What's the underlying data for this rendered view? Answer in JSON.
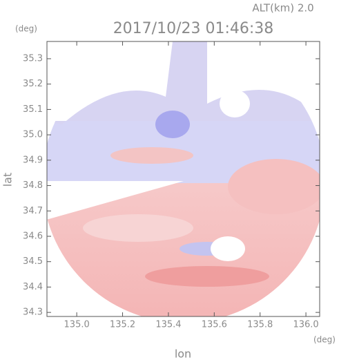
{
  "chart_data": {
    "type": "radar-image",
    "title": "2017/10/23 01:46:38",
    "subtitle": "ALT(km) 2.0",
    "x_label": "lon",
    "y_label": "lat",
    "x_unit": "(deg)",
    "y_unit": "(deg)",
    "xlim": [
      134.87,
      136.06
    ],
    "ylim": [
      34.284,
      35.368
    ],
    "xticks": [
      {
        "value": 135,
        "label": "135.0"
      },
      135.2,
      135.4,
      135.6,
      135.8,
      {
        "value": 136,
        "label": "136.0"
      }
    ],
    "yticks": [
      34.3,
      34.4,
      34.5,
      34.6,
      34.7,
      34.8,
      34.9,
      {
        "value": 35,
        "label": "35.0"
      },
      35.1,
      35.2,
      35.3
    ]
  }
}
